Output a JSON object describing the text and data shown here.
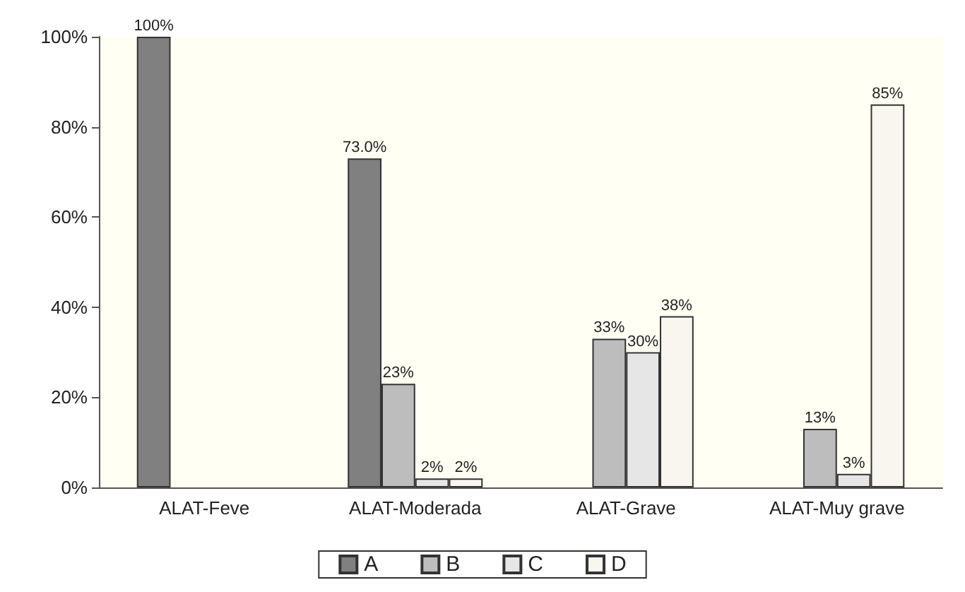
{
  "chart_data": {
    "type": "bar",
    "categories": [
      "ALAT-Feve",
      "ALAT-Moderada",
      "ALAT-Grave",
      "ALAT-Muy grave"
    ],
    "series": [
      {
        "name": "A",
        "color": "#808080",
        "values": [
          100,
          73.0,
          null,
          null
        ],
        "value_labels": [
          "100%",
          "73.0%",
          null,
          null
        ]
      },
      {
        "name": "B",
        "color": "#bdbdbd",
        "values": [
          null,
          23,
          33,
          13
        ],
        "value_labels": [
          null,
          "23%",
          "33%",
          "13%"
        ]
      },
      {
        "name": "C",
        "color": "#e6e6e6",
        "values": [
          null,
          2,
          30,
          3
        ],
        "value_labels": [
          null,
          "2%",
          "30%",
          "3%"
        ]
      },
      {
        "name": "D",
        "color": "#f9f6ef",
        "values": [
          null,
          2,
          38,
          85
        ],
        "value_labels": [
          null,
          "2%",
          "38%",
          "85%"
        ]
      }
    ],
    "ylim": [
      0,
      100
    ],
    "yticks": [
      {
        "value": 0,
        "label": "0%"
      },
      {
        "value": 20,
        "label": "20%"
      },
      {
        "value": 40,
        "label": "40%"
      },
      {
        "value": 60,
        "label": "60%"
      },
      {
        "value": 80,
        "label": "80%"
      },
      {
        "value": 100,
        "label": "100%"
      }
    ],
    "grid": false,
    "legend": "bottom"
  }
}
